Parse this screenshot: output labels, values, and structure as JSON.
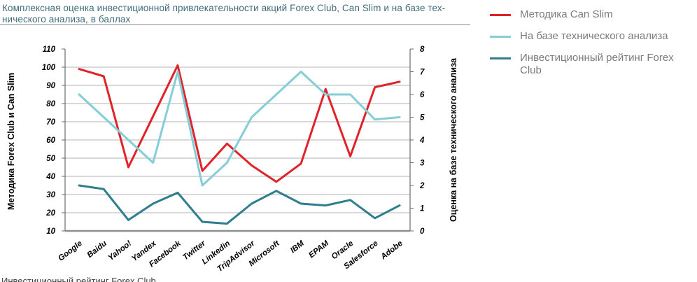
{
  "header": {
    "title_lines": [
      "Комплексная оценка инвестиционной привлекательности акций Forex Club, Can Slim и на базе тех-",
      "нического анализа, в баллах"
    ],
    "title_color": "#3f6b7a"
  },
  "footer": {
    "caption_fragment": "Инвестиционный рейтинг Forex Club"
  },
  "chart_data": {
    "type": "line",
    "title": "Комплексная оценка инвестиционной привлекательности акций Forex Club, Can Slim и на базе технического анализа, в баллах",
    "categories": [
      "Google",
      "Baidu",
      "Yahoo!",
      "Yandex",
      "Facebook",
      "Twitter",
      "Linkedin",
      "TripAdvisor",
      "Microsoft",
      "IBM",
      "EPAM",
      "Oracle",
      "Salesforce",
      "Adobe"
    ],
    "series": [
      {
        "id": "can-slim",
        "name": "Методика Can Slim",
        "color": "#e0232a",
        "axis": "left",
        "values": [
          99,
          95,
          45,
          73,
          101,
          43,
          58,
          46,
          37,
          47,
          88,
          51,
          89,
          92
        ]
      },
      {
        "id": "tech-analysis",
        "name": "На базе технического анализа",
        "color": "#85cdd7",
        "axis": "right",
        "values": [
          6,
          5,
          4,
          3,
          7,
          2,
          3,
          5,
          6,
          7,
          6,
          6,
          4.9,
          5
        ]
      },
      {
        "id": "forex-club",
        "name": "Инвестиционный рейтинг Forex Club",
        "color": "#2e7e8e",
        "axis": "left",
        "values": [
          35,
          33,
          16,
          25,
          31,
          15,
          14,
          25,
          32,
          25,
          24,
          27,
          17,
          24
        ]
      }
    ],
    "ylabel_left": "Методика Forex Club и Can Slim",
    "ylabel_right": "Оценка на базе технического анализа",
    "axis_left": {
      "min": 10,
      "max": 110,
      "step": 10
    },
    "axis_right": {
      "min": 0,
      "max": 8,
      "step": 1
    },
    "grid": true,
    "legend_position": "right",
    "colors": {
      "gridline": "#b3b3b3",
      "axis_line": "#6b6b6b",
      "baseline": "#8f8f8f",
      "tick_text": "#000000"
    }
  }
}
